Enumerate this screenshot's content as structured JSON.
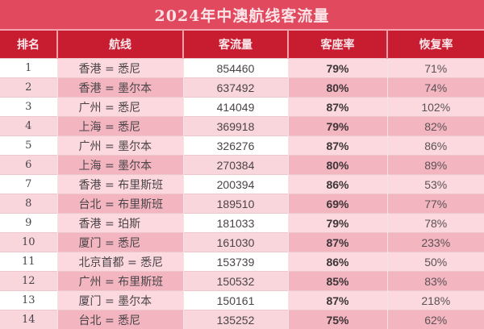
{
  "title": "2024年中澳航线客流量",
  "colors": {
    "title_bg": "#e14a5e",
    "header_bg": "#c81c30",
    "row_light": "#fbd9df",
    "row_dark": "#f3b5bf",
    "row_white": "#ffffff"
  },
  "table": {
    "headers": [
      "排名",
      "航线",
      "客流量",
      "客座率",
      "恢复率"
    ],
    "rows": [
      {
        "rank": "1",
        "route": "香港 = 悉尼",
        "flow": "854460",
        "seat": "79%",
        "recov": "71%"
      },
      {
        "rank": "2",
        "route": "香港 = 墨尔本",
        "flow": "637492",
        "seat": "80%",
        "recov": "74%"
      },
      {
        "rank": "3",
        "route": "广州 = 悉尼",
        "flow": "414049",
        "seat": "87%",
        "recov": "102%"
      },
      {
        "rank": "4",
        "route": "上海 = 悉尼",
        "flow": "369918",
        "seat": "79%",
        "recov": "82%"
      },
      {
        "rank": "5",
        "route": "广州 = 墨尔本",
        "flow": "326276",
        "seat": "87%",
        "recov": "86%"
      },
      {
        "rank": "6",
        "route": "上海 = 墨尔本",
        "flow": "270384",
        "seat": "80%",
        "recov": "89%"
      },
      {
        "rank": "7",
        "route": "香港 = 布里斯班",
        "flow": "200394",
        "seat": "86%",
        "recov": "53%"
      },
      {
        "rank": "8",
        "route": "台北 = 布里斯班",
        "flow": "189510",
        "seat": "69%",
        "recov": "77%"
      },
      {
        "rank": "9",
        "route": "香港 = 珀斯",
        "flow": "181033",
        "seat": "79%",
        "recov": "78%"
      },
      {
        "rank": "10",
        "route": "厦门 = 悉尼",
        "flow": "161030",
        "seat": "87%",
        "recov": "233%"
      },
      {
        "rank": "11",
        "route": "北京首都 = 悉尼",
        "flow": "153739",
        "seat": "86%",
        "recov": "50%"
      },
      {
        "rank": "12",
        "route": "广州 = 布里斯班",
        "flow": "150532",
        "seat": "85%",
        "recov": "83%"
      },
      {
        "rank": "13",
        "route": "厦门 = 墨尔本",
        "flow": "150161",
        "seat": "87%",
        "recov": "218%"
      },
      {
        "rank": "14",
        "route": "台北 = 悉尼",
        "flow": "135252",
        "seat": "75%",
        "recov": "62%"
      }
    ]
  }
}
